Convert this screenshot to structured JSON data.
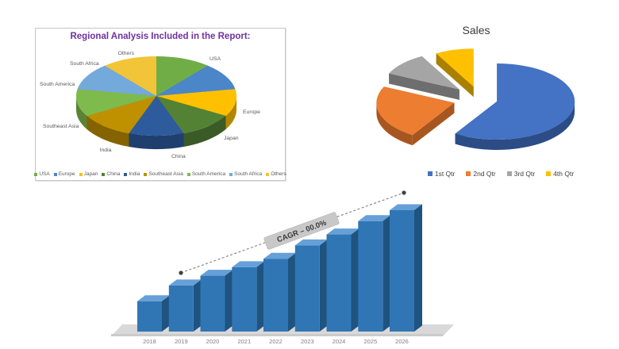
{
  "page": {
    "background": "#FFFFFF"
  },
  "chart_data": [
    {
      "type": "pie",
      "variant": "3d",
      "title": "Regional Analysis Included in the Report:",
      "title_color": "#7030A0",
      "legend_position": "bottom",
      "label_color": "#595959",
      "slices": [
        {
          "label": "USA",
          "value": 11.1,
          "color": "#70AD47",
          "dark": "#507A32"
        },
        {
          "label": "Europe",
          "value": 11.1,
          "color": "#4A86C8",
          "dark": "#33608F"
        },
        {
          "label": "Japan",
          "value": 11.1,
          "color": "#FFC000",
          "dark": "#B38600"
        },
        {
          "label": "China",
          "value": 11.1,
          "color": "#548235",
          "dark": "#3A5B25"
        },
        {
          "label": "India",
          "value": 11.1,
          "color": "#2E5B9B",
          "dark": "#1F3F6E"
        },
        {
          "label": "Southeast Asia",
          "value": 11.1,
          "color": "#BF9000",
          "dark": "#856300"
        },
        {
          "label": "South America",
          "value": 11.1,
          "color": "#7FBA4D",
          "dark": "#598434"
        },
        {
          "label": "South Africa",
          "value": 11.1,
          "color": "#74A9DC",
          "dark": "#4F7BA6"
        },
        {
          "label": "Others",
          "value": 11.1,
          "color": "#F2C437",
          "dark": "#B08913"
        }
      ]
    },
    {
      "type": "pie",
      "variant": "3d-exploded",
      "title": "Sales",
      "title_color": "#3B3B3B",
      "legend_position": "bottom",
      "slices": [
        {
          "label": "1st Qtr",
          "value": 59,
          "color": "#4472C4",
          "dark": "#2C4C86",
          "explode": 22
        },
        {
          "label": "2nd Qtr",
          "value": 23,
          "color": "#ED7D31",
          "dark": "#A85620",
          "explode": 34
        },
        {
          "label": "3rd Qtr",
          "value": 10,
          "color": "#A5A5A5",
          "dark": "#6E6E6E",
          "explode": 36
        },
        {
          "label": "4th Qtr",
          "value": 8,
          "color": "#FFC000",
          "dark": "#AA8000",
          "explode": 33
        }
      ]
    },
    {
      "type": "bar",
      "variant": "3d",
      "categories": [
        "2018",
        "2019",
        "2020",
        "2021",
        "2022",
        "2023",
        "2024",
        "2025",
        "2026"
      ],
      "values": [
        25,
        38,
        46,
        53,
        60,
        71,
        80,
        91,
        100
      ],
      "ylim": [
        0,
        100
      ],
      "annotation": "CAGR – 00.0%",
      "annotation_bg": "#C8C8C8",
      "annotation_text_color": "#3B3B3B",
      "bar_color": "#3076B5",
      "bar_side_color": "#1F5380",
      "bar_top_color": "#66A0D8",
      "floor_color": "#D9D9D9",
      "floor_edge_color": "#CBCBCB",
      "trendline": {
        "style": "dashed",
        "color": "#808080",
        "marker_color": "#3F3F3F"
      },
      "label_color": "#7F7F7F"
    }
  ]
}
